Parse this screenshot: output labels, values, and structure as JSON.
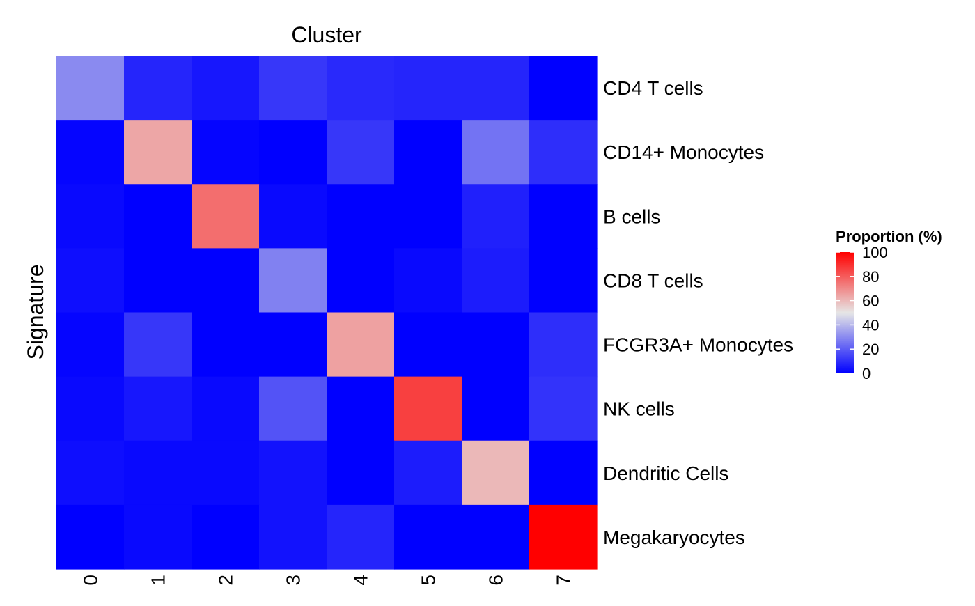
{
  "chart_data": {
    "type": "heatmap",
    "title": "Cluster",
    "xlabel": "Cluster",
    "ylabel": "Signature",
    "x": [
      "0",
      "1",
      "2",
      "3",
      "4",
      "5",
      "6",
      "7"
    ],
    "y": [
      "CD4 T cells",
      "CD14+ Monocytes",
      "B cells",
      "CD8 T cells",
      "FCGR3A+ Monocytes",
      "NK cells",
      "Dendritic Cells",
      "Megakaryocytes"
    ],
    "values": [
      [
        30,
        8,
        5,
        12,
        9,
        8,
        8,
        0
      ],
      [
        1,
        64,
        1,
        0,
        12,
        0,
        25,
        10
      ],
      [
        2,
        0,
        76,
        2,
        0,
        0,
        7,
        0
      ],
      [
        3,
        0,
        0,
        28,
        0,
        2,
        6,
        0
      ],
      [
        1,
        12,
        0,
        0,
        65,
        0,
        0,
        10
      ],
      [
        2,
        5,
        2,
        18,
        0,
        86,
        0,
        11
      ],
      [
        3,
        2,
        2,
        4,
        0,
        6,
        60,
        0
      ],
      [
        0,
        2,
        0,
        4,
        8,
        0,
        0,
        100
      ]
    ],
    "colorscale": {
      "low": "#0000ff",
      "mid": "#e6e6e6",
      "high": "#ff0000",
      "min": 0,
      "mid_value": 50,
      "max": 100
    },
    "legend": {
      "title": "Proportion (%)",
      "ticks": [
        0,
        20,
        40,
        60,
        80,
        100
      ],
      "position": "right"
    }
  }
}
